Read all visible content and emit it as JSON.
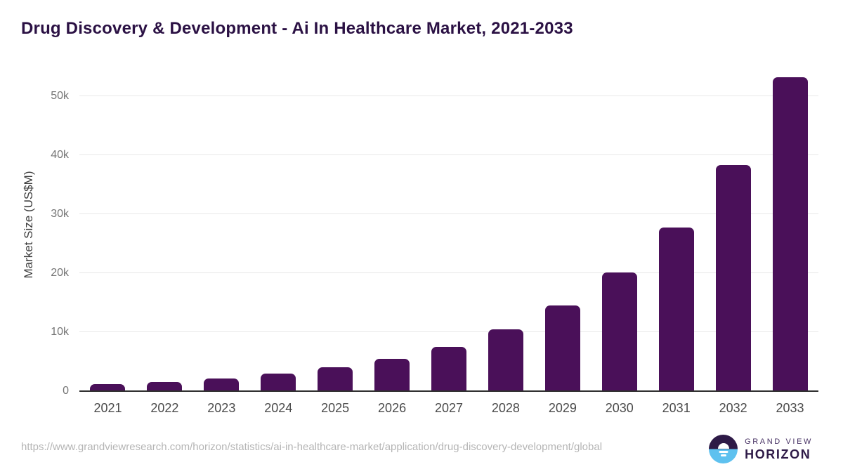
{
  "header": {
    "title": "Drug Discovery & Development - Ai In Healthcare Market, 2021-2033"
  },
  "chart_data": {
    "type": "bar",
    "title": "Drug Discovery & Development - Ai In Healthcare Market, 2021-2033",
    "categories": [
      "2021",
      "2022",
      "2023",
      "2024",
      "2025",
      "2026",
      "2027",
      "2028",
      "2029",
      "2030",
      "2031",
      "2032",
      "2033"
    ],
    "values": [
      1160,
      1570,
      2120,
      3000,
      4060,
      5520,
      7560,
      10480,
      14500,
      20120,
      27760,
      38360,
      53180
    ],
    "unit": "US$M",
    "xlabel": "",
    "ylabel": "Market Size (US$M)",
    "ylim": [
      0,
      55000
    ],
    "yticks": {
      "values": [
        0,
        10000,
        20000,
        30000,
        40000,
        50000
      ],
      "labels": [
        "0",
        "10k",
        "20k",
        "30k",
        "40k",
        "50k"
      ]
    },
    "grid": true,
    "legend": false,
    "bar_color": "#4a1059"
  },
  "footer": {
    "source_url": "https://www.grandviewresearch.com/horizon/statistics/ai-in-healthcare-market/application/drug-discovery-development/global",
    "logo": {
      "top_text": "GRAND VIEW",
      "bottom_text": "HORIZON"
    }
  },
  "colors": {
    "title": "#2b1144",
    "bar": "#4a1059",
    "gridline": "#e8e8e8",
    "axis_line": "#2f2f2f",
    "y_tick_label": "#757575",
    "x_tick_label": "#4a4a4a",
    "axis_title": "#3c3c3c",
    "source_url": "#b5b5b5",
    "logo_dark_purple": "#2e1a47",
    "logo_light_blue": "#5ec1ef",
    "logo_text_purple": "#463063"
  }
}
